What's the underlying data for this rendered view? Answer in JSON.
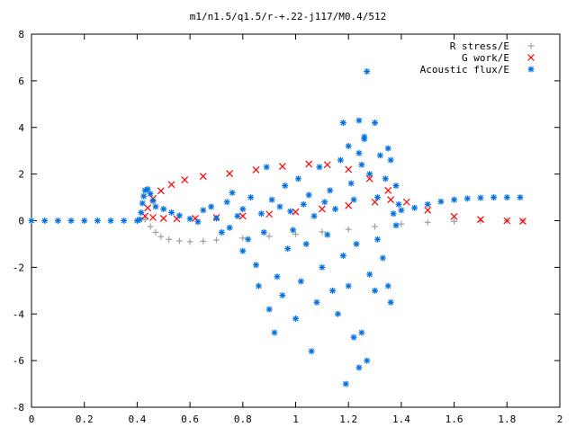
{
  "chart_data": {
    "type": "scatter",
    "title": "m1/n1.5/q1.5/r-+.22-j117/M0.4/512",
    "xlabel": "",
    "ylabel": "",
    "xlim": [
      0,
      2
    ],
    "ylim": [
      -8,
      8
    ],
    "x_ticks": [
      "0",
      "0.2",
      "0.4",
      "0.6",
      "0.8",
      "1",
      "1.2",
      "1.4",
      "1.6",
      "1.8",
      "2"
    ],
    "y_ticks": [
      "-8",
      "-6",
      "-4",
      "-2",
      "0",
      "2",
      "4",
      "6",
      "8"
    ],
    "grid": false,
    "legend_position": "top-right",
    "series": [
      {
        "name": "R stress/E",
        "marker": "plus",
        "color": "#a0a0a0",
        "points": [
          [
            0.43,
            0.05
          ],
          [
            0.45,
            -0.25
          ],
          [
            0.47,
            -0.5
          ],
          [
            0.49,
            -0.68
          ],
          [
            0.52,
            -0.8
          ],
          [
            0.56,
            -0.87
          ],
          [
            0.6,
            -0.9
          ],
          [
            0.65,
            -0.88
          ],
          [
            0.7,
            -0.83
          ],
          [
            0.8,
            -0.75
          ],
          [
            0.9,
            -0.67
          ],
          [
            1.0,
            -0.58
          ],
          [
            1.1,
            -0.48
          ],
          [
            1.2,
            -0.37
          ],
          [
            1.3,
            -0.25
          ],
          [
            1.4,
            -0.14
          ],
          [
            1.5,
            -0.07
          ],
          [
            1.6,
            -0.03
          ],
          [
            1.7,
            -0.01
          ],
          [
            1.8,
            0.0
          ],
          [
            1.86,
            0.0
          ]
        ]
      },
      {
        "name": "G work/E",
        "marker": "cross",
        "color": "#ff0000",
        "points": [
          [
            0.43,
            0.2
          ],
          [
            0.44,
            0.55
          ],
          [
            0.46,
            0.95
          ],
          [
            0.49,
            1.28
          ],
          [
            0.53,
            1.55
          ],
          [
            0.58,
            1.75
          ],
          [
            0.65,
            1.9
          ],
          [
            0.75,
            2.02
          ],
          [
            0.85,
            2.18
          ],
          [
            0.95,
            2.33
          ],
          [
            1.05,
            2.43
          ],
          [
            1.12,
            2.4
          ],
          [
            1.2,
            2.2
          ],
          [
            1.28,
            1.8
          ],
          [
            1.35,
            1.3
          ],
          [
            1.42,
            0.8
          ],
          [
            1.5,
            0.45
          ],
          [
            1.6,
            0.18
          ],
          [
            1.7,
            0.05
          ],
          [
            1.8,
            0.0
          ],
          [
            1.86,
            -0.02
          ],
          [
            1.36,
            0.9
          ],
          [
            1.3,
            0.8
          ],
          [
            1.2,
            0.65
          ],
          [
            1.1,
            0.5
          ],
          [
            1.0,
            0.38
          ],
          [
            0.9,
            0.28
          ],
          [
            0.8,
            0.2
          ],
          [
            0.7,
            0.14
          ],
          [
            0.62,
            0.1
          ],
          [
            0.55,
            0.08
          ],
          [
            0.5,
            0.1
          ],
          [
            0.46,
            0.14
          ]
        ]
      },
      {
        "name": "Acoustic flux/E",
        "marker": "star",
        "color": "#0070e0",
        "points": [
          [
            0.0,
            0.0
          ],
          [
            0.05,
            0.0
          ],
          [
            0.1,
            0.0
          ],
          [
            0.15,
            0.0
          ],
          [
            0.2,
            0.0
          ],
          [
            0.25,
            0.0
          ],
          [
            0.3,
            0.0
          ],
          [
            0.35,
            0.0
          ],
          [
            0.4,
            0.0
          ],
          [
            0.41,
            0.05
          ],
          [
            0.415,
            0.35
          ],
          [
            0.42,
            0.75
          ],
          [
            0.425,
            1.05
          ],
          [
            0.43,
            1.3
          ],
          [
            0.44,
            1.35
          ],
          [
            0.45,
            1.15
          ],
          [
            0.46,
            0.85
          ],
          [
            0.47,
            0.6
          ],
          [
            0.5,
            0.5
          ],
          [
            0.53,
            0.35
          ],
          [
            0.56,
            0.22
          ],
          [
            0.6,
            0.08
          ],
          [
            0.63,
            -0.05
          ],
          [
            1.4,
            0.45
          ],
          [
            1.45,
            0.55
          ],
          [
            1.5,
            0.7
          ],
          [
            1.55,
            0.82
          ],
          [
            1.6,
            0.9
          ],
          [
            1.65,
            0.95
          ],
          [
            1.7,
            0.98
          ],
          [
            1.75,
            1.0
          ],
          [
            1.8,
            1.0
          ],
          [
            1.85,
            1.0
          ],
          [
            0.65,
            0.45
          ],
          [
            0.7,
            0.1
          ],
          [
            0.72,
            -0.5
          ],
          [
            0.75,
            -0.3
          ],
          [
            0.78,
            0.2
          ],
          [
            0.8,
            -1.3
          ],
          [
            0.82,
            -0.8
          ],
          [
            0.85,
            -1.9
          ],
          [
            0.86,
            -2.8
          ],
          [
            0.88,
            -0.5
          ],
          [
            0.9,
            -3.8
          ],
          [
            0.92,
            -4.8
          ],
          [
            0.93,
            -2.4
          ],
          [
            0.95,
            -3.2
          ],
          [
            0.97,
            -1.2
          ],
          [
            0.99,
            -0.4
          ],
          [
            1.0,
            -4.2
          ],
          [
            1.02,
            -2.6
          ],
          [
            1.04,
            -1.0
          ],
          [
            1.06,
            -5.6
          ],
          [
            1.08,
            -3.5
          ],
          [
            1.1,
            -2.0
          ],
          [
            1.12,
            -0.6
          ],
          [
            1.14,
            -3.0
          ],
          [
            1.16,
            -4.0
          ],
          [
            1.18,
            -1.5
          ],
          [
            1.19,
            -7.0
          ],
          [
            1.2,
            -2.8
          ],
          [
            1.22,
            -5.0
          ],
          [
            1.23,
            -1.0
          ],
          [
            1.24,
            -6.3
          ],
          [
            1.25,
            -4.8
          ],
          [
            1.27,
            -6.0
          ],
          [
            1.28,
            -2.3
          ],
          [
            1.3,
            -3.0
          ],
          [
            1.31,
            -0.8
          ],
          [
            1.33,
            -1.6
          ],
          [
            1.35,
            -2.8
          ],
          [
            1.36,
            -3.5
          ],
          [
            1.38,
            -0.2
          ],
          [
            0.68,
            0.6
          ],
          [
            0.74,
            0.8
          ],
          [
            0.76,
            1.2
          ],
          [
            0.8,
            0.5
          ],
          [
            0.83,
            1.0
          ],
          [
            0.87,
            0.3
          ],
          [
            0.89,
            2.3
          ],
          [
            0.91,
            0.9
          ],
          [
            0.94,
            0.6
          ],
          [
            0.96,
            1.5
          ],
          [
            0.98,
            0.4
          ],
          [
            1.01,
            1.8
          ],
          [
            1.03,
            0.7
          ],
          [
            1.05,
            1.1
          ],
          [
            1.07,
            0.2
          ],
          [
            1.09,
            2.3
          ],
          [
            1.11,
            0.8
          ],
          [
            1.13,
            1.3
          ],
          [
            1.15,
            0.5
          ],
          [
            1.17,
            2.6
          ],
          [
            1.18,
            4.2
          ],
          [
            1.2,
            3.2
          ],
          [
            1.21,
            1.6
          ],
          [
            1.22,
            0.9
          ],
          [
            1.24,
            4.3
          ],
          [
            1.25,
            2.4
          ],
          [
            1.26,
            3.5
          ],
          [
            1.27,
            6.4
          ],
          [
            1.28,
            2.0
          ],
          [
            1.3,
            4.2
          ],
          [
            1.31,
            1.0
          ],
          [
            1.32,
            2.8
          ],
          [
            1.34,
            1.8
          ],
          [
            1.35,
            3.1
          ],
          [
            1.36,
            2.6
          ],
          [
            1.37,
            0.3
          ],
          [
            1.38,
            1.5
          ],
          [
            1.39,
            0.7
          ],
          [
            1.26,
            3.6
          ],
          [
            1.24,
            2.9
          ]
        ]
      }
    ]
  }
}
